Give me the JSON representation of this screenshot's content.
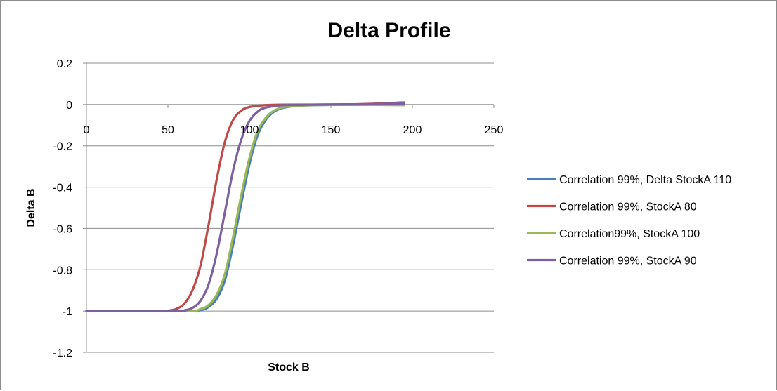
{
  "chart_data": {
    "type": "line",
    "title": "Delta Profile",
    "xlabel": "Stock B",
    "ylabel": "Delta B",
    "xlim": [
      0,
      250
    ],
    "ylim": [
      -1.2,
      0.2
    ],
    "x_ticks": [
      0,
      50,
      100,
      150,
      200,
      250
    ],
    "y_ticks": [
      0.2,
      0,
      -0.2,
      -0.4,
      -0.6,
      -0.8,
      -1,
      -1.2
    ],
    "grid": "horizontal",
    "legend_position": "right",
    "series": [
      {
        "name": "Correlation 99%, Delta StockA 110",
        "color": "#4a7ebb",
        "x": [
          0,
          60,
          70,
          75,
          80,
          85,
          90,
          95,
          100,
          105,
          110,
          115,
          120,
          125,
          130,
          140,
          150,
          170,
          195
        ],
        "y": [
          -1,
          -1,
          -0.995,
          -0.98,
          -0.94,
          -0.85,
          -0.68,
          -0.48,
          -0.29,
          -0.15,
          -0.075,
          -0.035,
          -0.018,
          -0.01,
          -0.006,
          -0.003,
          -0.002,
          -0.001,
          -0.001
        ]
      },
      {
        "name": "Correlation 99%, StockA 80",
        "color": "#be4b48",
        "x": [
          0,
          45,
          50,
          55,
          60,
          65,
          70,
          75,
          80,
          85,
          90,
          95,
          100,
          110,
          120,
          150,
          170,
          195
        ],
        "y": [
          -1,
          -1,
          -0.998,
          -0.99,
          -0.965,
          -0.9,
          -0.78,
          -0.58,
          -0.36,
          -0.18,
          -0.075,
          -0.03,
          -0.012,
          -0.003,
          -0.001,
          0,
          0.002,
          0.01
        ]
      },
      {
        "name": "Correlation99%, StockA 100",
        "color": "#98b954",
        "x": [
          0,
          60,
          70,
          75,
          80,
          85,
          90,
          95,
          100,
          105,
          110,
          115,
          120,
          125,
          130,
          140,
          150,
          170,
          195
        ],
        "y": [
          -1,
          -1,
          -0.99,
          -0.97,
          -0.92,
          -0.82,
          -0.64,
          -0.44,
          -0.26,
          -0.13,
          -0.065,
          -0.03,
          -0.015,
          -0.008,
          -0.005,
          -0.003,
          -0.002,
          -0.002,
          -0.003
        ]
      },
      {
        "name": "Correlation 99%, StockA 90",
        "color": "#7d60a0",
        "x": [
          0,
          55,
          60,
          65,
          70,
          75,
          80,
          85,
          90,
          95,
          100,
          105,
          110,
          120,
          130,
          150,
          170,
          195
        ],
        "y": [
          -1,
          -1,
          -0.997,
          -0.985,
          -0.95,
          -0.87,
          -0.72,
          -0.52,
          -0.32,
          -0.17,
          -0.08,
          -0.035,
          -0.015,
          -0.004,
          -0.002,
          0,
          0.001,
          0.005
        ]
      }
    ]
  }
}
